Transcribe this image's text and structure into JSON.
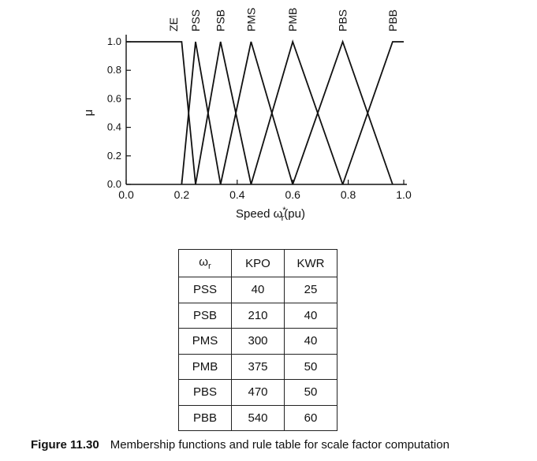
{
  "chart_data": {
    "type": "line",
    "xlabel": "Speed ω",
    "xlabel_sup": "*",
    "xlabel_sub": "r",
    "xlabel_unit": "(pu)",
    "ylabel": "μ",
    "xlim": [
      0.0,
      1.0
    ],
    "ylim": [
      0.0,
      1.0
    ],
    "x_ticks": [
      "0.0",
      "0.2",
      "0.4",
      "0.6",
      "0.8",
      "1.0"
    ],
    "y_ticks": [
      "0.0",
      "0.2",
      "0.4",
      "0.6",
      "0.8",
      "1.0"
    ],
    "grid": false,
    "series": [
      {
        "name": "ZE",
        "x": [
          0.0,
          0.2,
          0.25
        ],
        "y": [
          1,
          1,
          0
        ]
      },
      {
        "name": "PSS",
        "x": [
          0.2,
          0.25,
          0.34
        ],
        "y": [
          0,
          1,
          0
        ]
      },
      {
        "name": "PSB",
        "x": [
          0.25,
          0.34,
          0.45
        ],
        "y": [
          0,
          1,
          0
        ]
      },
      {
        "name": "PMS",
        "x": [
          0.34,
          0.45,
          0.6
        ],
        "y": [
          0,
          1,
          0
        ]
      },
      {
        "name": "PMB",
        "x": [
          0.45,
          0.6,
          0.78
        ],
        "y": [
          0,
          1,
          0
        ]
      },
      {
        "name": "PBS",
        "x": [
          0.6,
          0.78,
          0.96
        ],
        "y": [
          0,
          1,
          0
        ]
      },
      {
        "name": "PBB",
        "x": [
          0.78,
          0.96,
          1.0
        ],
        "y": [
          0,
          1,
          1
        ]
      }
    ]
  },
  "table": {
    "headers": [
      "ω",
      "KPO",
      "KWR"
    ],
    "header_sub": "r",
    "rows": [
      [
        "PSS",
        "40",
        "25"
      ],
      [
        "PSB",
        "210",
        "40"
      ],
      [
        "PMS",
        "300",
        "40"
      ],
      [
        "PMB",
        "375",
        "50"
      ],
      [
        "PBS",
        "470",
        "50"
      ],
      [
        "PBB",
        "540",
        "60"
      ]
    ]
  },
  "caption": {
    "number": "Figure 11.30",
    "text": "Membership functions and rule table for scale factor computation"
  }
}
